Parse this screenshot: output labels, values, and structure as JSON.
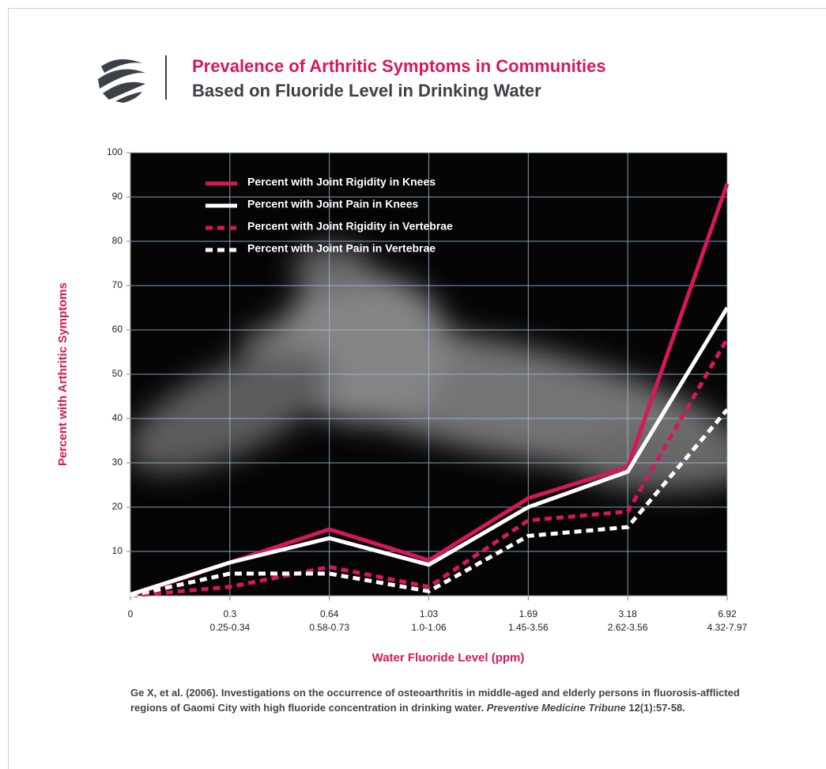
{
  "chart_data": {
    "type": "line",
    "title": "Prevalence of Arthritic Symptoms in Communities",
    "subtitle": "Based on Fluoride Level in Drinking Water",
    "x_label": "Water Fluoride Level (ppm)",
    "y_label": "Percent with Arthritic Symptoms",
    "categories": [
      "0",
      "0.3",
      "0.64",
      "1.03",
      "1.69",
      "3.18",
      "6.92"
    ],
    "category_ranges": [
      null,
      "0.25-0.34",
      "0.58-0.73",
      "1.0-1.06",
      "1.45-3.56",
      "2.62-3.56",
      "4.32-7.97"
    ],
    "series": [
      {
        "name": "Percent with Joint Rigidity in Knees",
        "color": "#d6175b",
        "linestyle": "solid",
        "values": [
          0,
          7.5,
          15,
          8,
          22,
          29,
          93
        ]
      },
      {
        "name": "Percent with Joint Pain in Knees",
        "color": "#ffffff",
        "linestyle": "solid",
        "values": [
          0.3,
          7.5,
          13,
          7,
          20,
          28,
          65
        ]
      },
      {
        "name": "Percent with Joint Rigidity in Vertebrae",
        "color": "#d6175b",
        "linestyle": "dashed",
        "values": [
          0,
          2,
          6.5,
          2,
          17,
          19,
          58
        ]
      },
      {
        "name": "Percent with Joint Pain in Vertebrae",
        "color": "#ffffff",
        "linestyle": "dashed",
        "values": [
          0,
          5,
          5,
          1,
          13.5,
          15.5,
          42
        ]
      }
    ],
    "ylim": [
      0,
      100
    ],
    "yticks": [
      10,
      20,
      30,
      40,
      50,
      60,
      70,
      80,
      90,
      100
    ],
    "grid": true,
    "legend": "upper-left",
    "citation": [
      "Ge X, et al. (2006). Investigations on the occurrence of osteoarthritis in middle-aged and elderly persons in fluorosis-afflicted regions of Gaomi City with high fluoride concentration in drinking water. ",
      "Preventive Medicine Tribune",
      " 12(1):57-58."
    ]
  }
}
